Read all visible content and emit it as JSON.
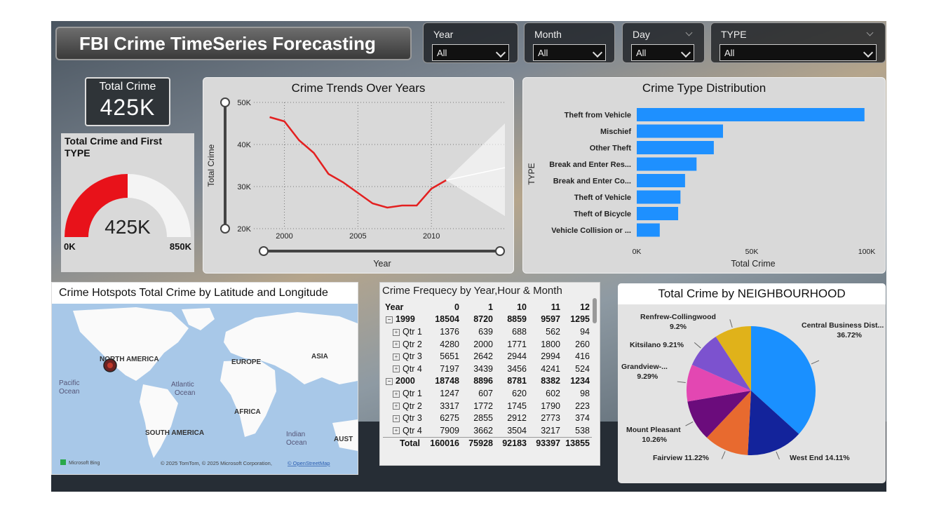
{
  "title": "FBI Crime TimeSeries Forecasting",
  "slicers": [
    {
      "label": "Year",
      "value": "All"
    },
    {
      "label": "Month",
      "value": "All"
    },
    {
      "label": "Day",
      "value": "All"
    },
    {
      "label": "TYPE",
      "value": "All"
    }
  ],
  "kpi": {
    "label": "Total Crime",
    "value": "425K"
  },
  "gauge": {
    "title": "Total Crime and First TYPE",
    "value_label": "425K",
    "min_label": "0K",
    "max_label": "850K",
    "fraction": 0.5,
    "fill_color": "#e8121a"
  },
  "trend": {
    "title": "Crime Trends Over  Years",
    "xlabel": "Year",
    "ylabel": "Total Crime",
    "x_ticks": [
      "2000",
      "2005",
      "2010"
    ],
    "y_ticks": [
      "20K",
      "30K",
      "40K",
      "50K"
    ]
  },
  "types": {
    "title": "Crime Type Distribution",
    "xlabel": "Total Crime",
    "ylabel": "TYPE",
    "x_ticks": [
      "0K",
      "50K",
      "100K"
    ]
  },
  "map": {
    "title": "Crime Hotspots Total Crime by Latitude and Longitude",
    "labels": {
      "north_america": "NORTH AMERICA",
      "europe": "EUROPE",
      "asia": "ASIA",
      "africa": "AFRICA",
      "south_america": "SOUTH AMERICA",
      "pacific": "Pacific",
      "pacific2": "Ocean",
      "atlantic": "Atlantic",
      "atlantic2": "Ocean",
      "indian": "Indian",
      "indian2": "Ocean",
      "aust": "AUST"
    },
    "bing": "Microsoft Bing",
    "credit": "© 2025 TomTom, © 2025 Microsoft Corporation, ",
    "credit_link": "© OpenStreetMap"
  },
  "matrix": {
    "title": "Crime Frequecy by Year,Hour & Month",
    "headers": [
      "Year",
      "0",
      "1",
      "10",
      "11",
      "12"
    ],
    "rows": [
      {
        "label": "1999",
        "level": 0,
        "toggle": "−",
        "values": [
          "18504",
          "8720",
          "8859",
          "9597",
          "1295"
        ]
      },
      {
        "label": "Qtr 1",
        "level": 1,
        "toggle": "+",
        "values": [
          "1376",
          "639",
          "688",
          "562",
          "94"
        ]
      },
      {
        "label": "Qtr 2",
        "level": 1,
        "toggle": "+",
        "values": [
          "4280",
          "2000",
          "1771",
          "1800",
          "260"
        ]
      },
      {
        "label": "Qtr 3",
        "level": 1,
        "toggle": "+",
        "values": [
          "5651",
          "2642",
          "2944",
          "2994",
          "416"
        ]
      },
      {
        "label": "Qtr 4",
        "level": 1,
        "toggle": "+",
        "values": [
          "7197",
          "3439",
          "3456",
          "4241",
          "524"
        ]
      },
      {
        "label": "2000",
        "level": 0,
        "toggle": "−",
        "values": [
          "18748",
          "8896",
          "8781",
          "8382",
          "1234"
        ]
      },
      {
        "label": "Qtr 1",
        "level": 1,
        "toggle": "+",
        "values": [
          "1247",
          "607",
          "620",
          "602",
          "98"
        ]
      },
      {
        "label": "Qtr 2",
        "level": 1,
        "toggle": "+",
        "values": [
          "3317",
          "1772",
          "1745",
          "1790",
          "223"
        ]
      },
      {
        "label": "Qtr 3",
        "level": 1,
        "toggle": "+",
        "values": [
          "6275",
          "2855",
          "2912",
          "2773",
          "374"
        ]
      },
      {
        "label": "Qtr 4",
        "level": 1,
        "toggle": "+",
        "values": [
          "7909",
          "3662",
          "3504",
          "3217",
          "538"
        ]
      }
    ],
    "total": {
      "label": "Total",
      "values": [
        "160016",
        "75928",
        "92183",
        "93397",
        "13855"
      ]
    }
  },
  "pie": {
    "title": "Total Crime by NEIGHBOURHOOD"
  },
  "chart_data": [
    {
      "type": "line",
      "title": "Crime Trends Over  Years",
      "xlabel": "Year",
      "ylabel": "Total Crime",
      "x": [
        1999,
        2000,
        2001,
        2002,
        2003,
        2004,
        2005,
        2006,
        2007,
        2008,
        2009,
        2010,
        2011
      ],
      "y": [
        46500,
        45500,
        41000,
        38000,
        33000,
        31000,
        28500,
        26000,
        25000,
        25500,
        25500,
        29500,
        31500
      ],
      "forecast": {
        "x": [
          2011,
          2015
        ],
        "y": [
          31500,
          34500
        ],
        "lower": [
          31500,
          23000
        ],
        "upper": [
          31500,
          45000
        ]
      },
      "xlim": [
        1998.4,
        2015
      ],
      "ylim": [
        20000,
        50000
      ],
      "color": "#e32020",
      "grid": true
    },
    {
      "type": "bar",
      "title": "Crime Type Distribution",
      "xlabel": "Total Crime",
      "ylabel": "TYPE",
      "orientation": "horizontal",
      "categories": [
        "Theft from Vehicle",
        "Mischief",
        "Other Theft",
        "Break and Enter Res...",
        "Break and Enter Co...",
        "Theft of Vehicle",
        "Theft of Bicycle",
        "Vehicle Collision or ..."
      ],
      "values": [
        99000,
        37500,
        33500,
        26000,
        21000,
        19000,
        18000,
        10000
      ],
      "xlim": [
        0,
        100000
      ],
      "color": "#1e90ff"
    },
    {
      "type": "pie",
      "title": "Total Crime by NEIGHBOURHOOD",
      "categories": [
        "Central Business Dist...",
        "West End",
        "Fairview",
        "Mount Pleasant",
        "Grandview-...",
        "Kitsilano",
        "Renfrew-Collingwood"
      ],
      "values": [
        36.72,
        14.11,
        11.22,
        10.26,
        9.29,
        9.21,
        9.2
      ],
      "labels": [
        "Central Business Dist... 36.72%",
        "West End 14.11%",
        "Fairview 11.22%",
        "Mount Pleasant 10.26%",
        "Grandview-... 9.29%",
        "Kitsilano 9.21%",
        "Renfrew-Collingwood 9.2%"
      ],
      "colors": [
        "#1a90ff",
        "#13239b",
        "#e86a2f",
        "#6b0c7c",
        "#e347b2",
        "#7c52cf",
        "#e0b21a"
      ]
    }
  ]
}
